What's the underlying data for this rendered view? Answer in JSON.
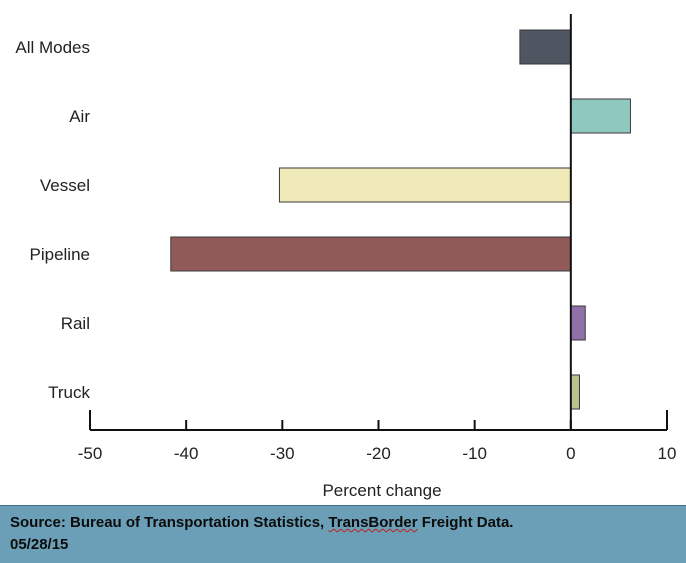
{
  "chart_data": {
    "type": "bar",
    "orientation": "horizontal",
    "categories": [
      "All Modes",
      "Air",
      "Vessel",
      "Pipeline",
      "Rail",
      "Truck"
    ],
    "values": [
      -5.3,
      6.2,
      -30.3,
      -41.6,
      1.5,
      0.9
    ],
    "colors": [
      "#4f5661",
      "#8fc8bf",
      "#efeab8",
      "#8f5a58",
      "#8f70a8",
      "#b9c38e"
    ],
    "xlabel": "Percent change",
    "xlim": [
      -50,
      10
    ],
    "xticks": [
      -50,
      -40,
      -30,
      -20,
      -10,
      0,
      10
    ],
    "grid": false
  },
  "source": {
    "prefix": "Source: Bureau of Transportation Statistics, ",
    "highlight": "TransBorder",
    "suffix": " Freight Data.",
    "date": "05/28/15"
  }
}
